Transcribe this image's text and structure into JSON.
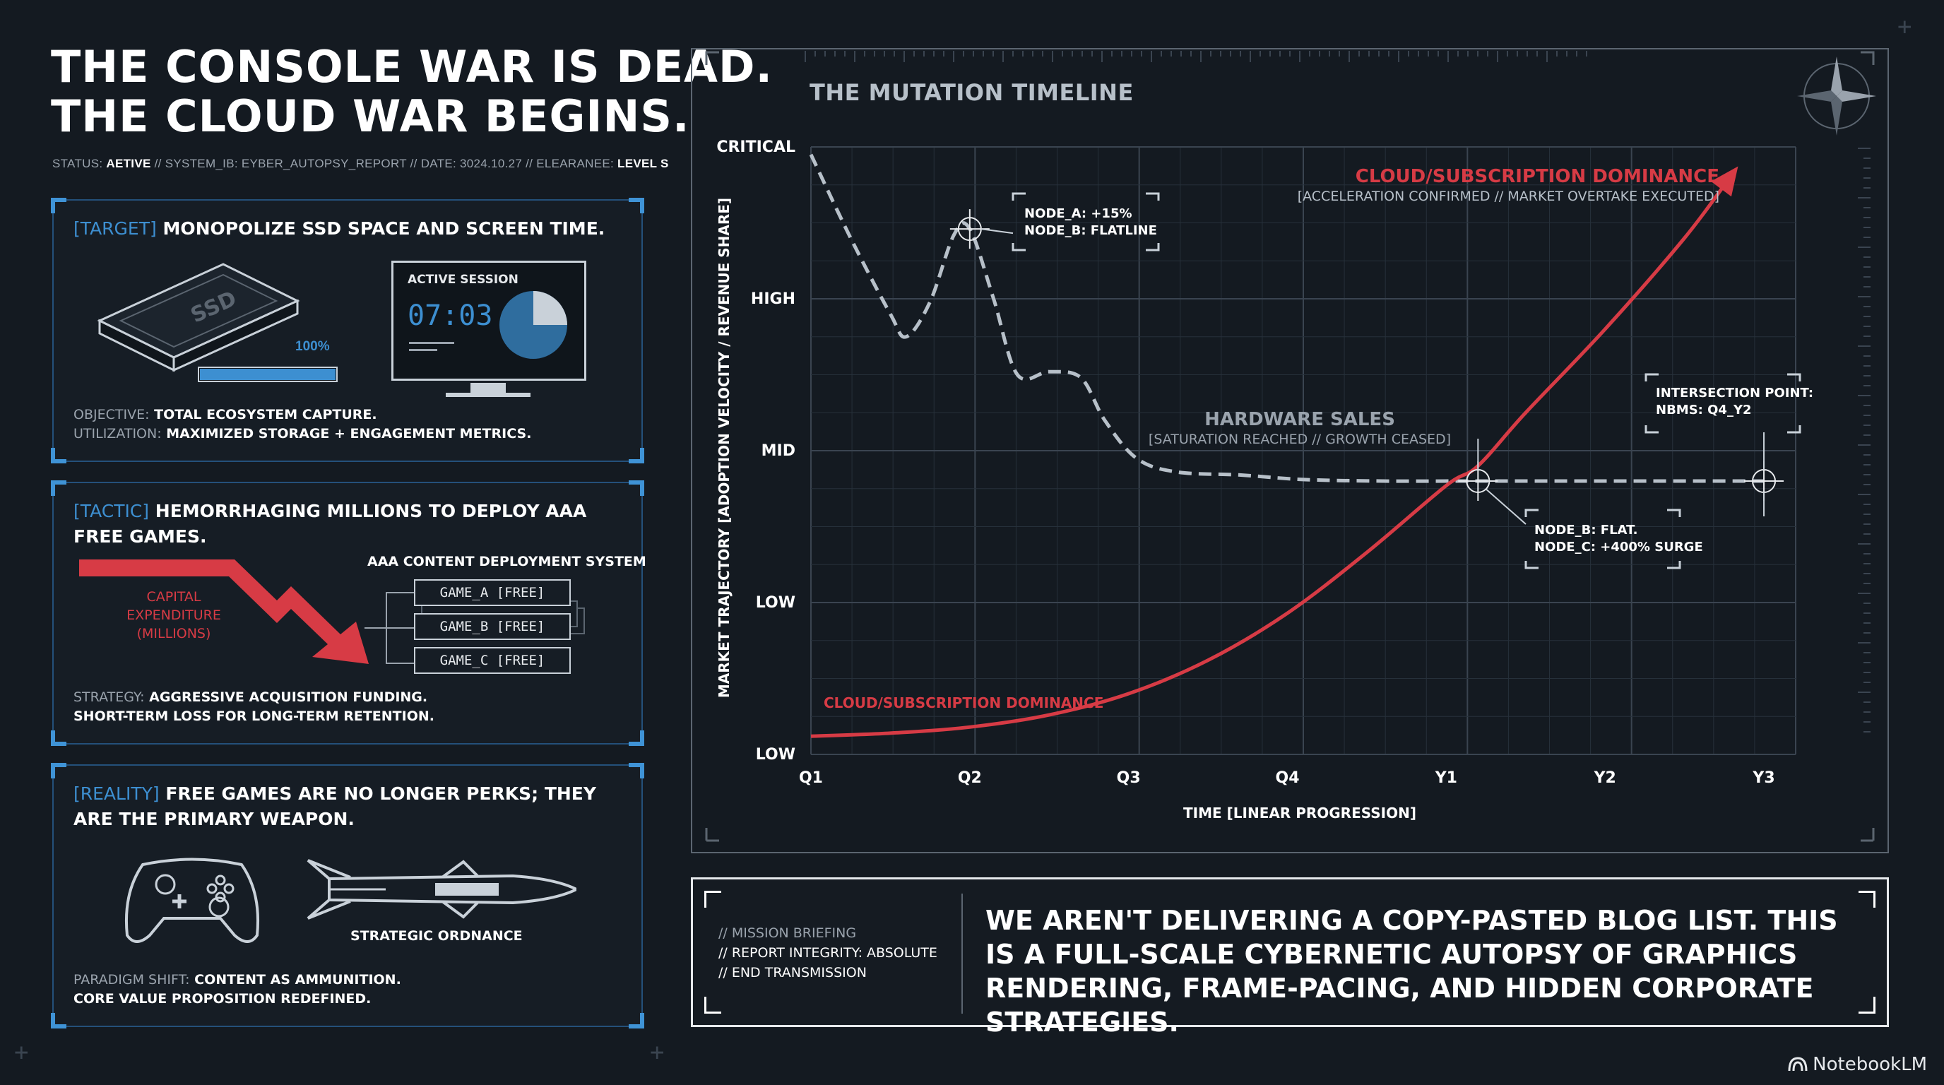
{
  "header": {
    "title_line1": "THE CONSOLE WAR IS DEAD.",
    "title_line2": "THE CLOUD WAR BEGINS.",
    "status_label": "STATUS:",
    "status_value": "AETIVE",
    "system_label": "// SYSTEM_IB:",
    "system_value": "EYBER_AUTOPSY_REPORT",
    "date_label": "// DATE:",
    "date_value": "3024.10.27",
    "clearance_label": "// ELEARANEE:",
    "clearance_value": "LEVEL S"
  },
  "target_panel": {
    "tag": "[TARGET]",
    "heading": "MONOPOLIZE SSD SPACE AND SCREEN TIME.",
    "ssd_label": "SSD",
    "ssd_fill_pct": 100,
    "ssd_pct_label": "100%",
    "session_label": "ACTIVE SESSION",
    "session_time": "07:03",
    "session_pie_fraction": 0.25,
    "objective_label": "OBJECTIVE:",
    "objective_value": "TOTAL ECOSYSTEM CAPTURE.",
    "utilization_label": "UTILIZATION:",
    "utilization_value": "MAXIMIZED STORAGE + ENGAGEMENT METRICS."
  },
  "tactic_panel": {
    "tag": "[TACTIC]",
    "heading": "HEMORRHAGING MILLIONS TO DEPLOY AAA FREE GAMES.",
    "capex_line1": "CAPITAL",
    "capex_line2": "EXPENDITURE",
    "capex_line3": "(MILLIONS)",
    "system_title": "AAA CONTENT DEPLOYMENT SYSTEM",
    "games": [
      "GAME_A [FREE]",
      "GAME_B [FREE]",
      "GAME_C [FREE]"
    ],
    "strategy_label": "STRATEGY:",
    "strategy_value": "AGGRESSIVE ACQUISITION FUNDING.",
    "strategy_line2": "SHORT-TERM LOSS FOR LONG-TERM RETENTION."
  },
  "reality_panel": {
    "tag": "[REALITY]",
    "heading": "FREE GAMES ARE NO LONGER PERKS; THEY ARE THE PRIMARY WEAPON.",
    "ordnance_label": "STRATEGIC ORDNANCE",
    "paradigm_label": "PARADIGM SHIFT:",
    "paradigm_value": "CONTENT AS AMMUNITION.",
    "paradigm_line2": "CORE VALUE PROPOSITION REDEFINED."
  },
  "chart_data": {
    "type": "line",
    "title": "THE MUTATION TIMELINE",
    "xlabel": "TIME [LINEAR PROGRESSION]",
    "ylabel": "MARKET TRAJECTORY [ADOPTION VELOCITY / REVENUE SHARE]",
    "categories": [
      "Q1",
      "Q2",
      "Q3",
      "Q4",
      "Y1",
      "Y2",
      "Y3"
    ],
    "y_levels": [
      {
        "label": "LOW",
        "value": 0
      },
      {
        "label": "LOW",
        "value": 1
      },
      {
        "label": "MID",
        "value": 2
      },
      {
        "label": "HIGH",
        "value": 3
      },
      {
        "label": "CRITICAL",
        "value": 4
      }
    ],
    "xlim": [
      0,
      6.2
    ],
    "ylim": [
      0,
      4
    ],
    "series": [
      {
        "name": "HARDWARE SALES",
        "style": "dashed",
        "color": "#b7c0c9",
        "annotation": "[SATURATION REACHED // GROWTH CEASED]",
        "x": [
          0,
          0.25,
          0.5,
          0.6,
          0.75,
          0.9,
          1.0,
          1.15,
          1.3,
          1.5,
          1.7,
          1.85,
          2.05,
          2.3,
          2.7,
          3.1,
          3.6,
          4.2,
          5.0,
          6.0
        ],
        "y": [
          3.95,
          3.4,
          2.9,
          2.75,
          2.98,
          3.42,
          3.46,
          3.0,
          2.5,
          2.52,
          2.48,
          2.2,
          1.95,
          1.86,
          1.84,
          1.81,
          1.8,
          1.8,
          1.8,
          1.8
        ]
      },
      {
        "name": "CLOUD/SUBSCRIPTION DOMINANCE",
        "style": "solid",
        "color": "#d73b45",
        "annotation": "[ACCELERATION CONFIRMED // MARKET OVERTAKE EXECUTED]",
        "x": [
          0,
          0.5,
          1.0,
          1.5,
          2.0,
          2.5,
          3.0,
          3.5,
          4.0,
          4.2,
          4.5,
          5.0,
          5.5,
          5.8
        ],
        "y": [
          0.12,
          0.14,
          0.18,
          0.26,
          0.4,
          0.62,
          0.93,
          1.33,
          1.77,
          1.9,
          2.25,
          2.8,
          3.4,
          3.82
        ]
      }
    ],
    "cloud_low_label": "CLOUD/SUBSCRIPTION DOMINANCE",
    "cloud_high_label": "CLOUD/SUBSCRIPTION DOMINANCE",
    "node_peak": {
      "line1": "NODE_A: +15%",
      "line2": "NODE_B: FLATLINE",
      "x": 1.0,
      "y": 3.46
    },
    "node_cross": {
      "line1": "NODE_B: FLAT.",
      "line2": "NODE_C: +400% SURGE",
      "x": 4.2,
      "y": 1.8
    },
    "intersection": {
      "line1": "INTERSECTION POINT:",
      "line2": "NBMS: Q4_Y2",
      "x": 6.0,
      "y": 1.8
    }
  },
  "briefing": {
    "meta_line1": "// MISSION BRIEFING",
    "meta_line2": "// REPORT INTEGRITY: ABSOLUTE",
    "meta_line3": "// END TRANSMISSION",
    "statement": "WE AREN'T DELIVERING A COPY-PASTED BLOG LIST. THIS IS A FULL-SCALE CYBERNETIC AUTOPSY OF GRAPHICS RENDERING, FRAME-PACING, AND HIDDEN CORPORATE STRATEGIES."
  },
  "brand": {
    "label": "NotebookLM"
  },
  "colors": {
    "accent_blue": "#3d8fd1",
    "accent_red": "#d73b45",
    "bg": "#141a21"
  }
}
